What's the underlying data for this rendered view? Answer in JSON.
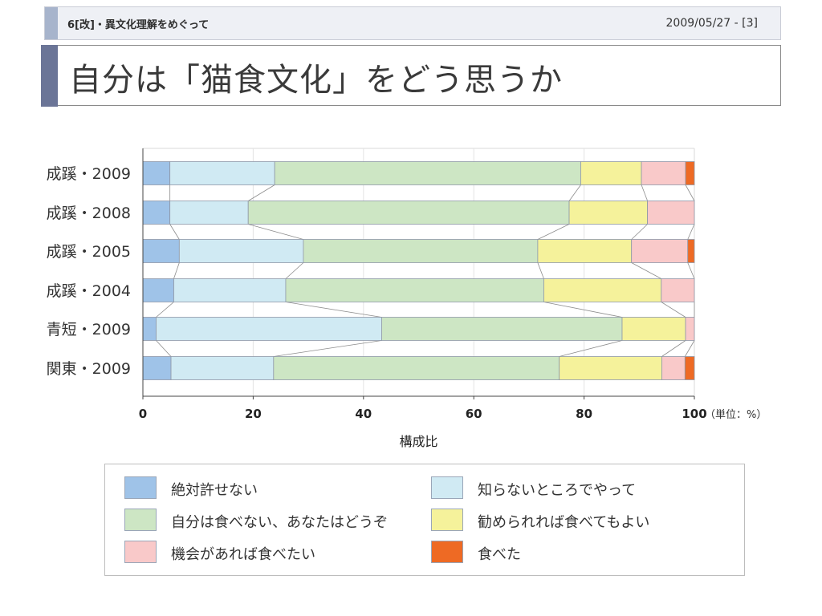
{
  "header": {
    "section": "6[改]・異文化理解をめぐって",
    "date": "2009/05/27 - [3]"
  },
  "title": "自分は「猫食文化」をどう思うか",
  "chart_data": {
    "type": "bar",
    "orientation": "horizontal",
    "stacked": true,
    "categories": [
      "成蹊・2009",
      "成蹊・2008",
      "成蹊・2005",
      "成蹊・2004",
      "青短・2009",
      "関東・2009"
    ],
    "series": [
      {
        "name": "絶対許せない",
        "color": "#9fc3e8",
        "values": [
          4.9,
          4.9,
          6.6,
          5.6,
          2.4,
          5.1
        ]
      },
      {
        "name": "知らないところでやって",
        "color": "#d0eaf3",
        "values": [
          19.0,
          14.2,
          22.5,
          20.3,
          40.9,
          18.6
        ]
      },
      {
        "name": "自分は食べない、あなたはどうぞ",
        "color": "#cde6c4",
        "values": [
          55.5,
          58.2,
          42.5,
          46.8,
          43.6,
          51.8
        ]
      },
      {
        "name": "勧められれば食べてもよい",
        "color": "#f5f29b",
        "values": [
          11.0,
          14.2,
          17.0,
          21.3,
          11.5,
          18.6
        ]
      },
      {
        "name": "機会があれば食べたい",
        "color": "#f9c9c9",
        "values": [
          8.0,
          8.5,
          10.2,
          6.0,
          1.6,
          4.2
        ]
      },
      {
        "name": "食べた",
        "color": "#ee6a24",
        "values": [
          1.6,
          0,
          1.2,
          0,
          0,
          1.7
        ]
      }
    ],
    "x_ticks": [
      "0",
      "20",
      "40",
      "60",
      "80",
      "100"
    ],
    "xlim": [
      0,
      100
    ],
    "xlabel": "構成比",
    "unit_note": "（単位：%）",
    "legend_position": "bottom"
  }
}
